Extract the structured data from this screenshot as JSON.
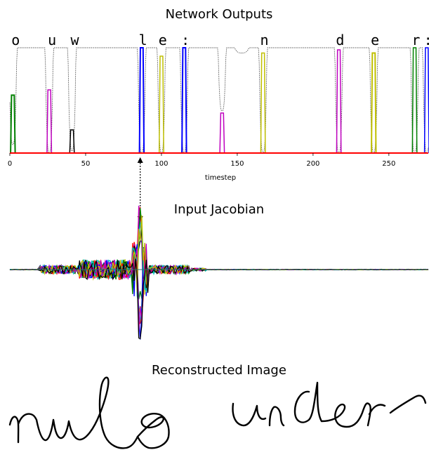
{
  "titles": {
    "outputs": "Network Outputs",
    "jacobian": "Input Jacobian",
    "reconstructed": "Reconstructed Image"
  },
  "chart_data": [
    {
      "type": "area",
      "title": "Network Outputs",
      "xlabel": "timestep",
      "ylabel": "",
      "xlim": [
        0,
        276
      ],
      "ylim": [
        0,
        1
      ],
      "x_ticks": [
        0,
        50,
        100,
        150,
        200,
        250
      ],
      "grid": false,
      "characters": [
        {
          "char": "o",
          "x": 2
        },
        {
          "char": "u",
          "x": 26
        },
        {
          "char": "w",
          "x": 41
        },
        {
          "char": "l",
          "x": 86
        },
        {
          "char": "e",
          "x": 99
        },
        {
          "char": ":",
          "x": 114
        },
        {
          "char": "n",
          "x": 166
        },
        {
          "char": "d",
          "x": 216
        },
        {
          "char": "e",
          "x": 239
        },
        {
          "char": "r",
          "x": 266
        },
        {
          "char": ":",
          "x": 274
        }
      ],
      "blank_dips": [
        {
          "x": 2,
          "depth": 0.92
        },
        {
          "x": 26,
          "depth": 1.0
        },
        {
          "x": 41,
          "depth": 0.98
        },
        {
          "x": 87,
          "depth": 1.0
        },
        {
          "x": 100,
          "depth": 1.0
        },
        {
          "x": 115,
          "depth": 1.0
        },
        {
          "x": 140,
          "depth": 0.6
        },
        {
          "x": 153,
          "depth": 0.05
        },
        {
          "x": 167,
          "depth": 1.0
        },
        {
          "x": 217,
          "depth": 1.0
        },
        {
          "x": 240,
          "depth": 1.0
        },
        {
          "x": 267,
          "depth": 1.0
        },
        {
          "x": 275,
          "depth": 1.0
        }
      ],
      "series": [
        {
          "label_x": 2,
          "peak": 0.55,
          "color": "#008000",
          "width": 2
        },
        {
          "label_x": 26,
          "peak": 0.6,
          "color": "#bf00bf",
          "width": 1.5
        },
        {
          "label_x": 41,
          "peak": 0.22,
          "color": "#000000",
          "width": 1.5
        },
        {
          "label_x": 87,
          "peak": 1.0,
          "color": "#0000ff",
          "width": 2
        },
        {
          "label_x": 100,
          "peak": 0.92,
          "color": "#bfbf00",
          "width": 1.5
        },
        {
          "label_x": 115,
          "peak": 1.0,
          "color": "#0000ff",
          "width": 2
        },
        {
          "label_x": 140,
          "peak": 0.38,
          "color": "#bf00bf",
          "width": 1.5
        },
        {
          "label_x": 167,
          "peak": 0.95,
          "color": "#bfbf00",
          "width": 1.5
        },
        {
          "label_x": 217,
          "peak": 0.98,
          "color": "#bf00bf",
          "width": 1.5
        },
        {
          "label_x": 240,
          "peak": 0.95,
          "color": "#bfbf00",
          "width": 2
        },
        {
          "label_x": 267,
          "peak": 1.0,
          "color": "#008000",
          "width": 1.5
        },
        {
          "label_x": 275,
          "peak": 1.0,
          "color": "#0000ff",
          "width": 1.5
        }
      ],
      "baseline_color": "#ff0000",
      "blank_color": "#555555",
      "marker_x": 86
    },
    {
      "type": "line",
      "title": "Input Jacobian",
      "xlim": [
        0,
        276
      ],
      "center_x": 86,
      "colors": [
        "#0000ff",
        "#008000",
        "#ff0000",
        "#00bfbf",
        "#bf00bf",
        "#bfbf00",
        "#000000",
        "#0000ff",
        "#008000",
        "#ff0000",
        "#00bfbf",
        "#bf00bf",
        "#bfbf00",
        "#000000"
      ]
    }
  ]
}
